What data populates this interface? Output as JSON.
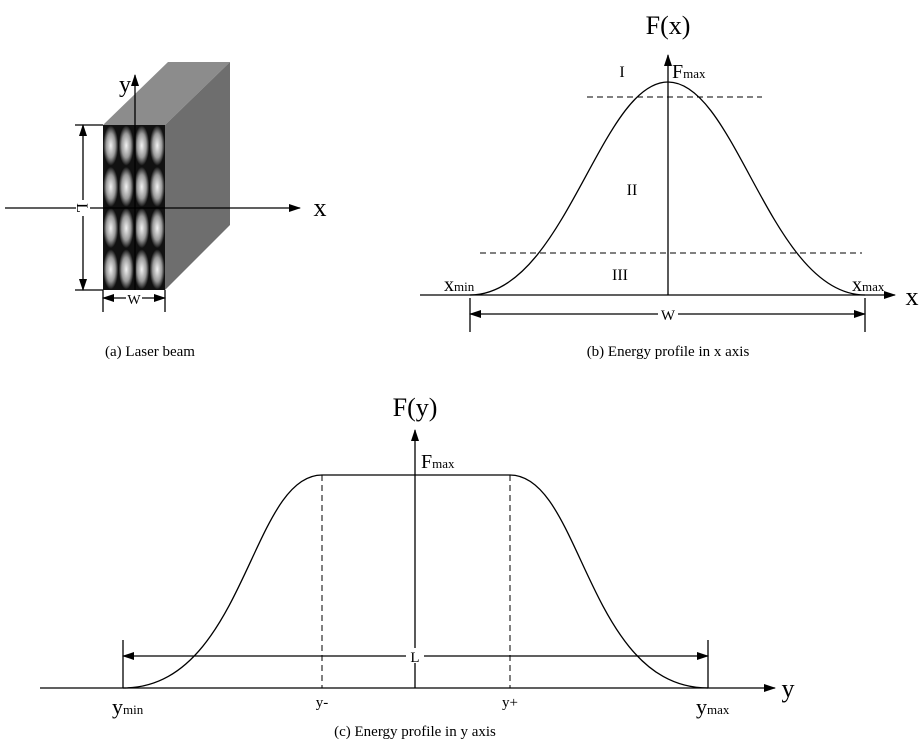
{
  "panel_a": {
    "y_axis": "y",
    "x_axis": "x",
    "length": "L",
    "width": "W",
    "caption": "(a) Laser beam"
  },
  "panel_b": {
    "axis_title": "F(x)",
    "region_1": "I",
    "peak": {
      "main": "F",
      "sub": "max"
    },
    "region_2": "II",
    "region_3": "III",
    "left": {
      "main": "x",
      "sub": "min"
    },
    "right": {
      "main": "x",
      "sub": "max"
    },
    "x_axis": "x",
    "width": "W",
    "caption": "(b) Energy profile in x axis"
  },
  "panel_c": {
    "axis_title": "F(y)",
    "peak": {
      "main": "F",
      "sub": "max"
    },
    "length": "L",
    "left": {
      "main": "y",
      "sub": "min"
    },
    "minus": "y-",
    "plus": "y+",
    "right": {
      "main": "y",
      "sub": "max"
    },
    "y_axis": "y",
    "caption": "(c) Energy profile in y axis"
  }
}
